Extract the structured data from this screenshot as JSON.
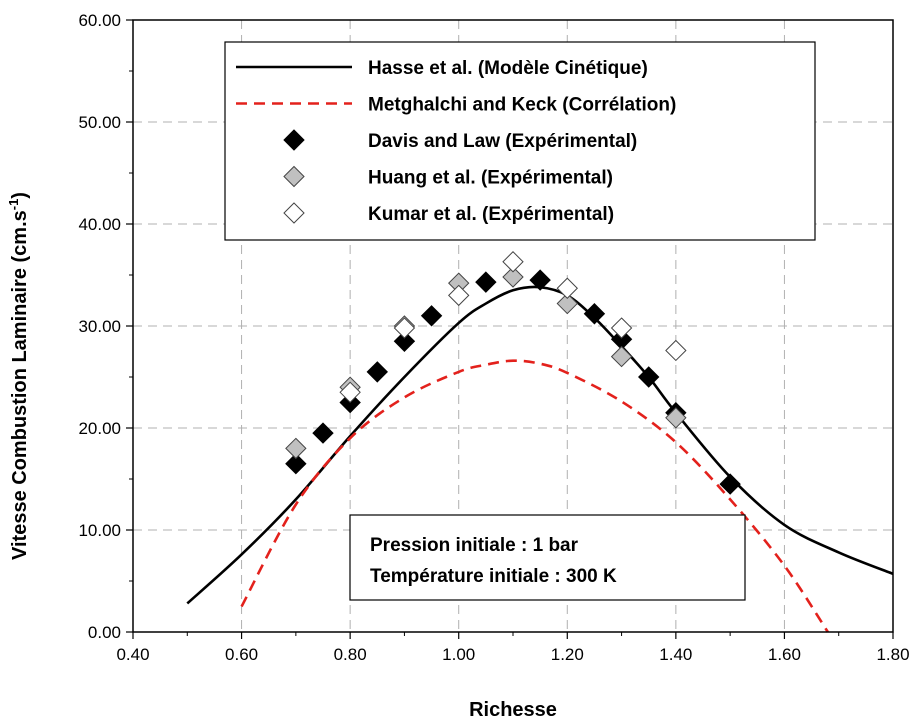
{
  "chart_data": {
    "type": "line",
    "xlabel": "Richesse",
    "ylabel": "Vitesse Combustion Laminaire (cm.s",
    "ylabel_sup": "-1",
    "ylabel_end": ")",
    "xlim": [
      0.4,
      1.8
    ],
    "ylim": [
      0,
      60
    ],
    "x_ticks": [
      "0.40",
      "0.60",
      "0.80",
      "1.00",
      "1.20",
      "1.40",
      "1.60",
      "1.80"
    ],
    "y_ticks": [
      "0.00",
      "10.00",
      "20.00",
      "30.00",
      "40.00",
      "50.00",
      "60.00"
    ],
    "grid": true,
    "legend_position": "top-center",
    "series": [
      {
        "name": "Hasse et al. (Modèle Cinétique)",
        "kind": "line",
        "style": "solid",
        "color": "#000000",
        "x": [
          0.5,
          0.6,
          0.7,
          0.8,
          0.9,
          1.0,
          1.05,
          1.1,
          1.15,
          1.2,
          1.25,
          1.3,
          1.35,
          1.4,
          1.5,
          1.6,
          1.7,
          1.8
        ],
        "y": [
          2.8,
          7.6,
          13.0,
          19.2,
          25.0,
          30.3,
          32.2,
          33.5,
          33.8,
          33.0,
          30.8,
          28.0,
          25.0,
          21.5,
          15.2,
          10.5,
          7.8,
          5.7
        ]
      },
      {
        "name": "Metghalchi and Keck (Corrélation)",
        "kind": "line",
        "style": "dashed",
        "color": "#e3211c",
        "x": [
          0.6,
          0.7,
          0.8,
          0.9,
          1.0,
          1.05,
          1.1,
          1.15,
          1.2,
          1.3,
          1.4,
          1.5,
          1.6,
          1.68
        ],
        "y": [
          2.5,
          12.5,
          19.0,
          23.0,
          25.5,
          26.2,
          26.6,
          26.3,
          25.4,
          22.6,
          18.6,
          13.0,
          6.5,
          0.0
        ]
      },
      {
        "name": "Davis and Law (Expérimental)",
        "kind": "marker",
        "marker": "diamond",
        "fill": "#000000",
        "x": [
          0.7,
          0.75,
          0.8,
          0.85,
          0.9,
          0.95,
          1.05,
          1.15,
          1.25,
          1.3,
          1.35,
          1.4,
          1.5
        ],
        "y": [
          16.5,
          19.5,
          22.5,
          25.5,
          28.5,
          31.0,
          34.3,
          34.5,
          31.2,
          28.7,
          25.0,
          21.5,
          14.5
        ]
      },
      {
        "name": "Huang et al. (Expérimental)",
        "kind": "marker",
        "marker": "diamond",
        "fill": "#c0c0c0",
        "x": [
          0.7,
          0.8,
          0.9,
          1.0,
          1.1,
          1.2,
          1.3,
          1.4
        ],
        "y": [
          18.0,
          24.0,
          30.0,
          34.2,
          34.8,
          32.2,
          27.0,
          21.0
        ]
      },
      {
        "name": "Kumar et al. (Expérimental)",
        "kind": "marker",
        "marker": "diamond",
        "fill": "#ffffff",
        "x": [
          0.8,
          0.9,
          1.0,
          1.1,
          1.2,
          1.3,
          1.4
        ],
        "y": [
          23.5,
          29.8,
          33.0,
          36.3,
          33.7,
          29.8,
          27.6
        ]
      }
    ],
    "annotation": [
      "Pression initiale : 1 bar",
      "Température initiale : 300 K"
    ]
  }
}
